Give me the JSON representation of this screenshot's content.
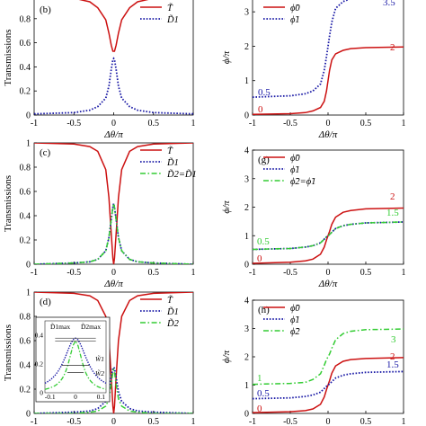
{
  "figure": {
    "colors": {
      "red": "#cc1111",
      "blue": "#1a1aa6",
      "green": "#33cc33"
    },
    "panels": [
      {
        "letter": "(b)",
        "ylabel": "Transmissions",
        "xlabel": "Δθ/π",
        "legend": [
          "T̃",
          "D̃1"
        ],
        "annotations": []
      },
      {
        "letter": "",
        "ylabel": "ϕ/π",
        "xlabel": "Δθ/π",
        "legend": [
          "ϕ̃0",
          "ϕ̃1"
        ],
        "annotations": [
          "3.5",
          "2",
          "0.5",
          "0"
        ]
      },
      {
        "letter": "(c)",
        "ylabel": "Transmissions",
        "xlabel": "Δθ/π",
        "legend": [
          "T̃",
          "D̃1",
          "D̃2=D̃1"
        ],
        "annotations": []
      },
      {
        "letter": "(g)",
        "ylabel": "ϕ/π",
        "xlabel": "Δθ/π",
        "legend": [
          "ϕ̃0",
          "ϕ̃1",
          "ϕ̃2=ϕ̃1"
        ],
        "annotations": [
          "2",
          "1.5",
          "0.5",
          "0"
        ]
      },
      {
        "letter": "(d)",
        "ylabel": "Transmissions",
        "xlabel": "",
        "legend": [
          "T̃",
          "D̃1",
          "D̃2"
        ],
        "annotations": []
      },
      {
        "letter": "(h)",
        "ylabel": "ϕ/π",
        "xlabel": "",
        "legend": [
          "ϕ̃0",
          "ϕ̃1",
          "ϕ̃2"
        ],
        "annotations": [
          "3",
          "2",
          "1.5",
          "1",
          "0.5",
          "0"
        ]
      }
    ],
    "inset": {
      "labels": [
        "D̃1max",
        "D̃2max",
        "W̃1",
        "W̃2"
      ],
      "yticks": [
        "0.4",
        "0.2",
        "0"
      ],
      "xticks": [
        "-0.1",
        "0",
        "0.1"
      ]
    }
  },
  "chart_data": [
    {
      "type": "line",
      "panel": "b",
      "xlabel": "Δθ/π",
      "ylabel": "Transmissions",
      "xlim": [
        -1,
        1
      ],
      "ylim": [
        0,
        1
      ],
      "xticks": [
        "-1",
        "-0.5",
        "0",
        "0.5",
        "1"
      ],
      "yticks": [
        "0",
        "0.2",
        "0.4",
        "0.6",
        "0.8"
      ],
      "series": [
        {
          "name": "T̃",
          "style": "solid",
          "color": "red",
          "x": [
            -1,
            -0.5,
            -0.3,
            -0.2,
            -0.1,
            -0.06,
            -0.03,
            -0.01,
            0,
            0.01,
            0.03,
            0.06,
            0.1,
            0.2,
            0.3,
            0.5,
            1
          ],
          "y": [
            0.99,
            0.97,
            0.94,
            0.89,
            0.79,
            0.68,
            0.58,
            0.53,
            0.53,
            0.53,
            0.58,
            0.68,
            0.79,
            0.89,
            0.94,
            0.97,
            0.99
          ]
        },
        {
          "name": "D̃1",
          "style": "dotted",
          "color": "blue",
          "x": [
            -1,
            -0.5,
            -0.3,
            -0.2,
            -0.1,
            -0.06,
            -0.03,
            -0.01,
            0,
            0.01,
            0.03,
            0.06,
            0.1,
            0.2,
            0.3,
            0.5,
            1
          ],
          "y": [
            0.01,
            0.02,
            0.04,
            0.07,
            0.14,
            0.24,
            0.38,
            0.46,
            0.47,
            0.46,
            0.38,
            0.24,
            0.14,
            0.07,
            0.04,
            0.02,
            0.01
          ]
        }
      ]
    },
    {
      "type": "line",
      "panel": "f",
      "xlabel": "Δθ/π",
      "ylabel": "ϕ/π",
      "xlim": [
        -1,
        1
      ],
      "ylim": [
        0,
        3.5
      ],
      "xticks": [
        "-1",
        "-0.5",
        "0",
        "0.5",
        "1"
      ],
      "yticks": [
        "0",
        "1",
        "2",
        "3"
      ],
      "series": [
        {
          "name": "ϕ̃0",
          "style": "solid",
          "color": "red",
          "x": [
            -1,
            -0.5,
            -0.3,
            -0.2,
            -0.1,
            -0.05,
            -0.02,
            0,
            0.02,
            0.05,
            0.1,
            0.2,
            0.3,
            0.5,
            1
          ],
          "y": [
            0.02,
            0.04,
            0.07,
            0.12,
            0.22,
            0.4,
            0.7,
            1.0,
            1.3,
            1.6,
            1.78,
            1.88,
            1.93,
            1.96,
            1.98
          ]
        },
        {
          "name": "ϕ̃1",
          "style": "dotted",
          "color": "blue",
          "x": [
            -1,
            -0.5,
            -0.3,
            -0.2,
            -0.1,
            -0.05,
            -0.02,
            0,
            0.02,
            0.05,
            0.1,
            0.2,
            0.3,
            0.5,
            1
          ],
          "y": [
            0.52,
            0.56,
            0.62,
            0.7,
            0.9,
            1.3,
            1.7,
            2.0,
            2.3,
            2.7,
            3.1,
            3.3,
            3.38,
            3.44,
            3.48
          ]
        }
      ]
    },
    {
      "type": "line",
      "panel": "c",
      "xlabel": "Δθ/π",
      "ylabel": "Transmissions",
      "xlim": [
        -1,
        1
      ],
      "ylim": [
        0,
        1
      ],
      "xticks": [
        "-1",
        "-0.5",
        "0",
        "0.5",
        "1"
      ],
      "yticks": [
        "0",
        "0.2",
        "0.4",
        "0.6",
        "0.8",
        "1"
      ],
      "series": [
        {
          "name": "T̃",
          "style": "solid",
          "color": "red",
          "x": [
            -1,
            -0.5,
            -0.3,
            -0.2,
            -0.1,
            -0.06,
            -0.03,
            -0.01,
            0,
            0.01,
            0.03,
            0.06,
            0.1,
            0.2,
            0.3,
            0.5,
            1
          ],
          "y": [
            1.0,
            0.99,
            0.97,
            0.93,
            0.78,
            0.55,
            0.25,
            0.05,
            0.0,
            0.05,
            0.25,
            0.55,
            0.78,
            0.93,
            0.97,
            0.99,
            1.0
          ]
        },
        {
          "name": "D̃1",
          "style": "dotted",
          "color": "blue",
          "x": [
            -1,
            -0.5,
            -0.3,
            -0.2,
            -0.1,
            -0.06,
            -0.03,
            -0.01,
            0,
            0.01,
            0.03,
            0.06,
            0.1,
            0.2,
            0.3,
            0.5,
            1
          ],
          "y": [
            0.0,
            0.01,
            0.02,
            0.04,
            0.11,
            0.22,
            0.37,
            0.47,
            0.5,
            0.47,
            0.37,
            0.22,
            0.11,
            0.04,
            0.02,
            0.01,
            0.0
          ]
        },
        {
          "name": "D̃2=D̃1",
          "style": "dashdot",
          "color": "green",
          "x": [
            -1,
            -0.5,
            -0.3,
            -0.2,
            -0.1,
            -0.06,
            -0.03,
            -0.01,
            0,
            0.01,
            0.03,
            0.06,
            0.1,
            0.2,
            0.3,
            0.5,
            1
          ],
          "y": [
            0.0,
            0.01,
            0.02,
            0.04,
            0.11,
            0.22,
            0.37,
            0.47,
            0.5,
            0.47,
            0.37,
            0.22,
            0.11,
            0.04,
            0.02,
            0.01,
            0.0
          ]
        }
      ]
    },
    {
      "type": "line",
      "panel": "g",
      "xlabel": "Δθ/π",
      "ylabel": "ϕ/π",
      "xlim": [
        -1,
        1
      ],
      "ylim": [
        0,
        4
      ],
      "xticks": [
        "-1",
        "-0.5",
        "0",
        "0.5",
        "1"
      ],
      "yticks": [
        "0",
        "1",
        "2",
        "3",
        "4"
      ],
      "series": [
        {
          "name": "ϕ̃0",
          "style": "solid",
          "color": "red",
          "x": [
            -1,
            -0.5,
            -0.3,
            -0.2,
            -0.1,
            -0.05,
            -0.02,
            0,
            0.02,
            0.05,
            0.1,
            0.2,
            0.3,
            0.5,
            1
          ],
          "y": [
            0.03,
            0.07,
            0.12,
            0.18,
            0.35,
            0.6,
            0.85,
            1.0,
            1.15,
            1.4,
            1.65,
            1.82,
            1.88,
            1.94,
            1.97
          ]
        },
        {
          "name": "ϕ̃1",
          "style": "dotted",
          "color": "blue",
          "x": [
            -1,
            -0.5,
            -0.3,
            -0.2,
            -0.1,
            -0.05,
            -0.02,
            0,
            0.02,
            0.05,
            0.1,
            0.2,
            0.3,
            0.5,
            1
          ],
          "y": [
            0.52,
            0.55,
            0.6,
            0.65,
            0.75,
            0.88,
            0.96,
            1.0,
            1.04,
            1.12,
            1.25,
            1.35,
            1.4,
            1.45,
            1.48
          ]
        },
        {
          "name": "ϕ̃2=ϕ̃1",
          "style": "dashdot",
          "color": "green",
          "x": [
            -1,
            -0.5,
            -0.3,
            -0.2,
            -0.1,
            -0.05,
            -0.02,
            0,
            0.02,
            0.05,
            0.1,
            0.2,
            0.3,
            0.5,
            1
          ],
          "y": [
            0.52,
            0.55,
            0.6,
            0.65,
            0.75,
            0.88,
            0.96,
            1.0,
            1.04,
            1.12,
            1.25,
            1.35,
            1.4,
            1.45,
            1.48
          ]
        }
      ]
    },
    {
      "type": "line",
      "panel": "d",
      "xlabel": "",
      "ylabel": "Transmissions",
      "xlim": [
        -1,
        1
      ],
      "ylim": [
        0,
        1
      ],
      "xticks": [
        "-1",
        "-0.5",
        "0",
        "0.5",
        "1"
      ],
      "yticks": [
        "0",
        "0.2",
        "0.4",
        "0.6",
        "0.8",
        "1"
      ],
      "series": [
        {
          "name": "T̃",
          "style": "solid",
          "color": "red",
          "x": [
            -1,
            -0.5,
            -0.3,
            -0.2,
            -0.1,
            -0.06,
            -0.03,
            -0.01,
            0,
            0.01,
            0.03,
            0.06,
            0.1,
            0.2,
            0.3,
            0.5,
            1
          ],
          "y": [
            1.0,
            0.99,
            0.97,
            0.93,
            0.8,
            0.6,
            0.3,
            0.06,
            0.0,
            0.06,
            0.3,
            0.6,
            0.8,
            0.93,
            0.97,
            0.99,
            1.0
          ]
        },
        {
          "name": "D̃1",
          "style": "dotted",
          "color": "blue",
          "x": [
            -1,
            -0.5,
            -0.3,
            -0.2,
            -0.1,
            -0.06,
            -0.03,
            -0.01,
            0,
            0.01,
            0.03,
            0.06,
            0.1,
            0.2,
            0.3,
            0.5,
            1
          ],
          "y": [
            0.0,
            0.01,
            0.02,
            0.04,
            0.1,
            0.18,
            0.3,
            0.37,
            0.38,
            0.37,
            0.3,
            0.18,
            0.1,
            0.04,
            0.02,
            0.01,
            0.0
          ]
        },
        {
          "name": "D̃2",
          "style": "dashdot",
          "color": "green",
          "x": [
            -1,
            -0.5,
            -0.3,
            -0.2,
            -0.1,
            -0.06,
            -0.03,
            -0.01,
            0,
            0.01,
            0.03,
            0.06,
            0.1,
            0.2,
            0.3,
            0.5,
            1
          ],
          "y": [
            0.0,
            0.0,
            0.01,
            0.02,
            0.06,
            0.12,
            0.24,
            0.34,
            0.36,
            0.34,
            0.24,
            0.12,
            0.06,
            0.02,
            0.01,
            0.0,
            0.0
          ]
        }
      ]
    },
    {
      "type": "line",
      "panel": "h",
      "xlabel": "",
      "ylabel": "ϕ/π",
      "xlim": [
        -1,
        1
      ],
      "ylim": [
        0,
        4
      ],
      "xticks": [
        "-1",
        "-0.5",
        "0",
        "0.5",
        "1"
      ],
      "yticks": [
        "0",
        "1",
        "2",
        "3",
        "4"
      ],
      "series": [
        {
          "name": "ϕ̃0",
          "style": "solid",
          "color": "red",
          "x": [
            -1,
            -0.5,
            -0.3,
            -0.2,
            -0.1,
            -0.05,
            -0.02,
            0,
            0.02,
            0.05,
            0.1,
            0.2,
            0.3,
            0.5,
            1
          ],
          "y": [
            0.03,
            0.06,
            0.1,
            0.16,
            0.32,
            0.58,
            0.84,
            1.0,
            1.16,
            1.42,
            1.68,
            1.84,
            1.9,
            1.94,
            1.97
          ]
        },
        {
          "name": "ϕ̃1",
          "style": "dotted",
          "color": "blue",
          "x": [
            -1,
            -0.5,
            -0.3,
            -0.2,
            -0.1,
            -0.05,
            -0.02,
            0,
            0.02,
            0.05,
            0.1,
            0.2,
            0.3,
            0.5,
            1
          ],
          "y": [
            0.52,
            0.55,
            0.6,
            0.65,
            0.75,
            0.88,
            0.96,
            1.0,
            1.04,
            1.12,
            1.25,
            1.35,
            1.4,
            1.45,
            1.48
          ]
        },
        {
          "name": "ϕ̃2",
          "style": "dashdot",
          "color": "green",
          "x": [
            -1,
            -0.5,
            -0.3,
            -0.2,
            -0.1,
            -0.05,
            -0.02,
            0,
            0.02,
            0.05,
            0.1,
            0.2,
            0.3,
            0.5,
            1
          ],
          "y": [
            1.03,
            1.06,
            1.1,
            1.2,
            1.4,
            1.7,
            1.9,
            2.0,
            2.1,
            2.3,
            2.6,
            2.82,
            2.9,
            2.96,
            2.98
          ]
        }
      ]
    }
  ]
}
